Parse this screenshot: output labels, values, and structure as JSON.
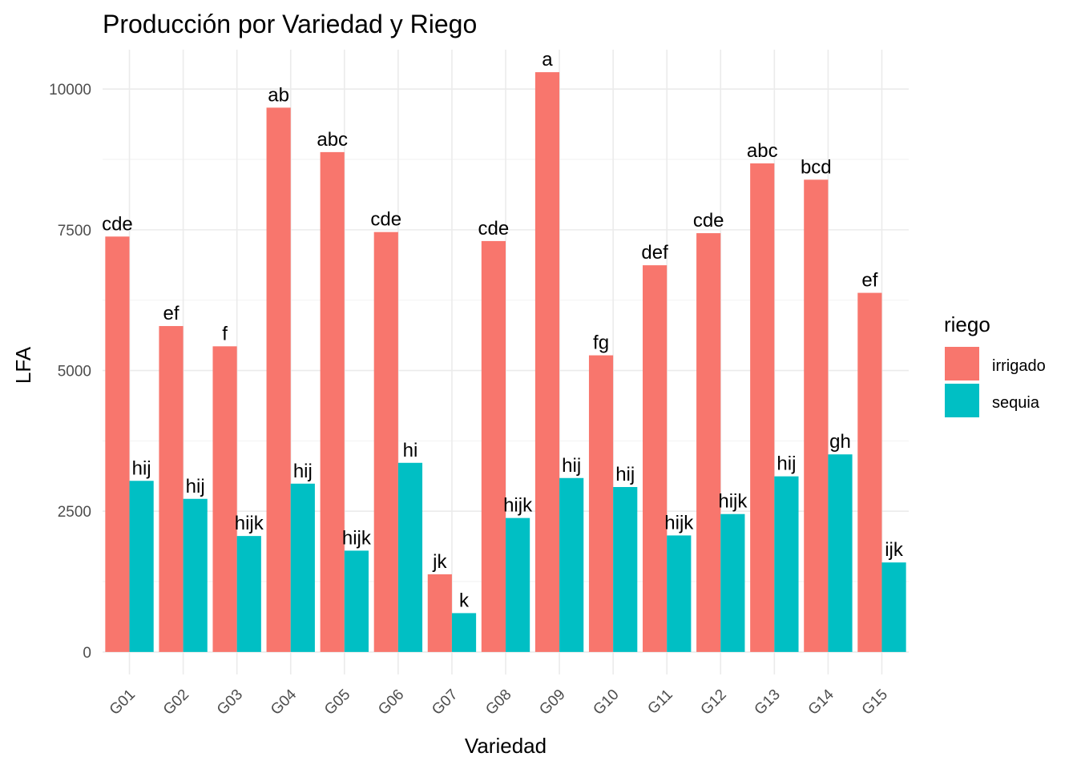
{
  "chart_data": {
    "type": "bar",
    "title": "Producción por Variedad y Riego",
    "xlabel": "Variedad",
    "ylabel": "LFA",
    "ylim": [
      -400,
      10700
    ],
    "yticks": [
      0,
      2500,
      5000,
      7500,
      10000
    ],
    "ytick_labels": [
      "0",
      "2500",
      "5000",
      "7500",
      "10000"
    ],
    "grid": true,
    "legend": {
      "title": "riego",
      "position": "right"
    },
    "categories": [
      "G01",
      "G02",
      "G03",
      "G04",
      "G05",
      "G06",
      "G07",
      "G08",
      "G09",
      "G10",
      "G11",
      "G12",
      "G13",
      "G14",
      "G15"
    ],
    "series": [
      {
        "name": "irrigado",
        "color": "#F8766D",
        "values": [
          7380,
          5790,
          5430,
          9670,
          8880,
          7460,
          1380,
          7300,
          10300,
          5270,
          6870,
          7440,
          8680,
          8390,
          6380
        ],
        "labels": [
          "cde",
          "ef",
          "f",
          "ab",
          "abc",
          "cde",
          "jk",
          "cde",
          "a",
          "fg",
          "def",
          "cde",
          "abc",
          "bcd",
          "ef"
        ]
      },
      {
        "name": "sequia",
        "color": "#00BFC4",
        "values": [
          3040,
          2720,
          2060,
          2990,
          1800,
          3360,
          690,
          2380,
          3090,
          2930,
          2070,
          2450,
          3120,
          3510,
          1590
        ],
        "labels": [
          "hij",
          "hij",
          "hijk",
          "hij",
          "hijk",
          "hi",
          "k",
          "hijk",
          "hij",
          "hij",
          "hijk",
          "hijk",
          "hij",
          "gh",
          "ijk"
        ]
      }
    ]
  }
}
